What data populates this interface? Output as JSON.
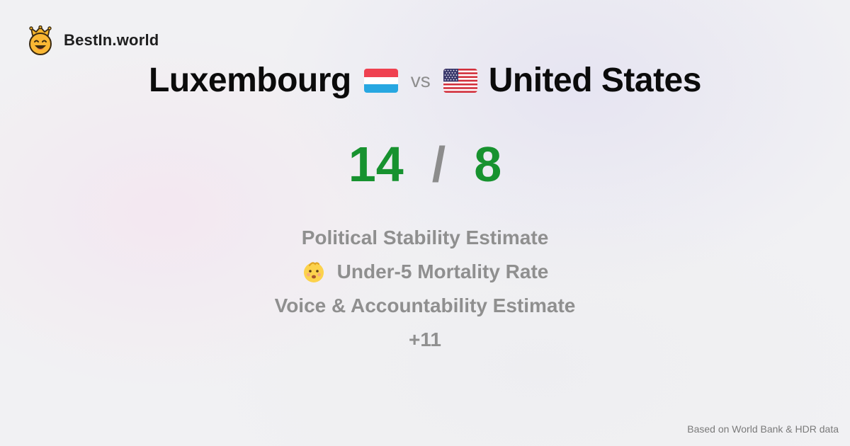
{
  "brand": {
    "name": "BestIn.world",
    "logo_icon": "crowned-smiley-icon"
  },
  "comparison": {
    "left_country": "Luxembourg",
    "left_flag_icon": "luxembourg-flag-icon",
    "vs_label": "vs",
    "right_country": "United States",
    "right_flag_icon": "us-flag-icon"
  },
  "score": {
    "left": "14",
    "separator": "/",
    "right": "8",
    "color": "#17922f"
  },
  "metrics": [
    {
      "label": "Political Stability Estimate"
    },
    {
      "label": "Under-5 Mortality Rate",
      "icon": "baby-face-icon"
    },
    {
      "label": "Voice & Accountability Estimate"
    },
    {
      "label": "+11"
    }
  ],
  "footer": {
    "source_note": "Based on World Bank & HDR data"
  }
}
